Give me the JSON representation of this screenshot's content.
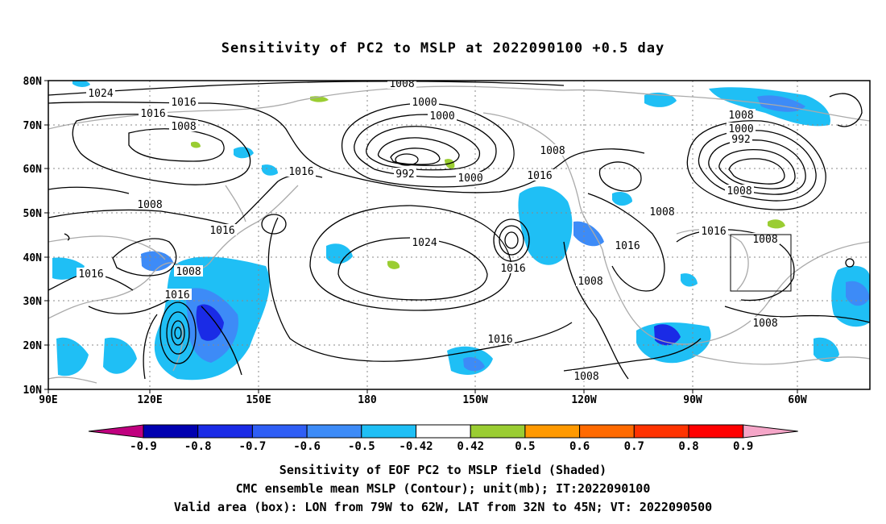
{
  "title": "Sensitivity of PC2 to MSLP at 2022090100 +0.5 day",
  "footer": {
    "line1": "Sensitivity of EOF PC2 to MSLP field (Shaded)",
    "line2": "CMC ensemble mean MSLP (Contour); unit(mb); IT:2022090100",
    "line3": "Valid area (box): LON from 79W to 62W, LAT from 32N to 45N; VT: 2022090500"
  },
  "axes": {
    "lat_labels": [
      "80N",
      "70N",
      "60N",
      "50N",
      "40N",
      "30N",
      "20N",
      "10N"
    ],
    "lon_labels": [
      "90E",
      "120E",
      "150E",
      "180",
      "150W",
      "120W",
      "90W",
      "60W"
    ]
  },
  "colorbar": {
    "labels": [
      "-0.9",
      "-0.8",
      "-0.7",
      "-0.6",
      "-0.5",
      "-0.42",
      "0.42",
      "0.5",
      "0.6",
      "0.7",
      "0.8",
      "0.9"
    ],
    "colors": [
      "#c0007f",
      "#0000b0",
      "#1a2be6",
      "#2f5ef5",
      "#3d8bf7",
      "#1fbff5",
      "#ffffff",
      "#9acd32",
      "#ff9900",
      "#ff6a00",
      "#ff3300",
      "#ff0000",
      "#f5a6c8"
    ]
  },
  "contour_labels": [
    "1024",
    "1016",
    "1016",
    "1008",
    "1008",
    "1000",
    "1000",
    "992",
    "1000",
    "1016",
    "1008",
    "1016",
    "1008",
    "1016",
    "1008",
    "1000",
    "992",
    "1008",
    "1008",
    "1008",
    "1016",
    "1024",
    "1016",
    "1016",
    "1016",
    "1008",
    "1008",
    "1016",
    "1016",
    "1008",
    "1008"
  ],
  "valid_area": {
    "lon_min": -79,
    "lon_max": -62,
    "lat_min": 32,
    "lat_max": 45
  }
}
